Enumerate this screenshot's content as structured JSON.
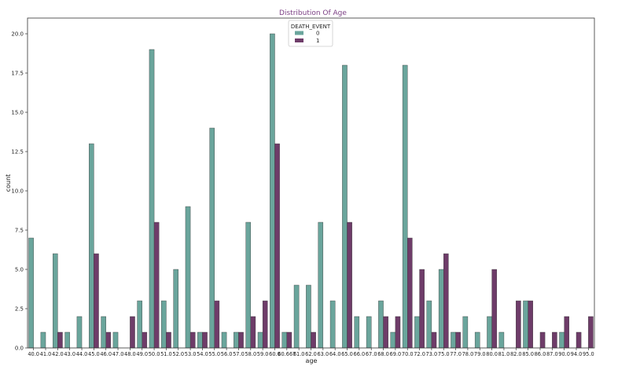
{
  "chart_data": {
    "type": "bar",
    "title": "Distribution Of Age",
    "xlabel": "age",
    "ylabel": "count",
    "ylim": [
      0,
      21
    ],
    "yticks": [
      "0.0",
      "2.5",
      "5.0",
      "7.5",
      "10.0",
      "12.5",
      "15.0",
      "17.5",
      "20.0"
    ],
    "grid": false,
    "legend": {
      "title": "DEATH_EVENT",
      "placement": "top-center"
    },
    "categories": [
      "40.0",
      "41.0",
      "42.0",
      "43.0",
      "44.0",
      "45.0",
      "46.0",
      "47.0",
      "48.0",
      "49.0",
      "50.0",
      "51.0",
      "52.0",
      "53.0",
      "54.0",
      "55.0",
      "56.0",
      "57.0",
      "58.0",
      "59.0",
      "60.0",
      "60.667",
      "61.0",
      "62.0",
      "63.0",
      "64.0",
      "65.0",
      "66.0",
      "67.0",
      "68.0",
      "69.0",
      "70.0",
      "72.0",
      "73.0",
      "75.0",
      "77.0",
      "78.0",
      "79.0",
      "80.0",
      "81.0",
      "82.0",
      "85.0",
      "86.0",
      "87.0",
      "90.0",
      "94.0",
      "95.0"
    ],
    "series": [
      {
        "name": "0",
        "color": "#6aa59c",
        "values": [
          7,
          1,
          6,
          1,
          2,
          13,
          2,
          1,
          0,
          3,
          19,
          3,
          5,
          9,
          1,
          14,
          1,
          1,
          8,
          1,
          20,
          1,
          4,
          4,
          8,
          3,
          18,
          2,
          2,
          3,
          1,
          18,
          2,
          3,
          5,
          1,
          2,
          1,
          2,
          1,
          0,
          3,
          0,
          0,
          1,
          0,
          0
        ]
      },
      {
        "name": "1",
        "color": "#6e3c69",
        "values": [
          0,
          0,
          1,
          0,
          0,
          6,
          1,
          0,
          2,
          1,
          8,
          1,
          0,
          1,
          1,
          3,
          0,
          1,
          2,
          3,
          13,
          1,
          0,
          1,
          0,
          0,
          8,
          0,
          0,
          2,
          2,
          7,
          5,
          1,
          6,
          1,
          0,
          0,
          5,
          0,
          3,
          3,
          1,
          1,
          2,
          1,
          2
        ]
      }
    ]
  }
}
